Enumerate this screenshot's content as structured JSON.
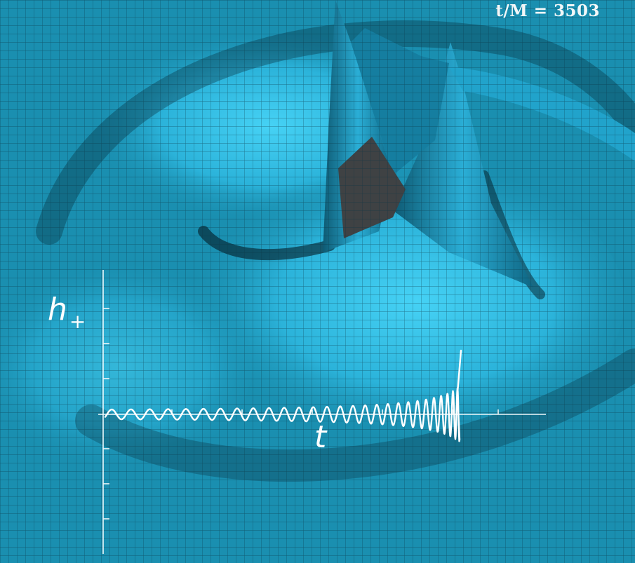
{
  "time_readout": "t/M = 3503",
  "plot": {
    "y_label": "h",
    "y_label_sub": "+",
    "x_label": "t"
  },
  "colors": {
    "surface": "#1a8fb0",
    "surface_light": "#3cc8ee",
    "grid_line": "#0a2a38",
    "hole": "#3f4244",
    "plot_line": "#ffffff"
  }
}
